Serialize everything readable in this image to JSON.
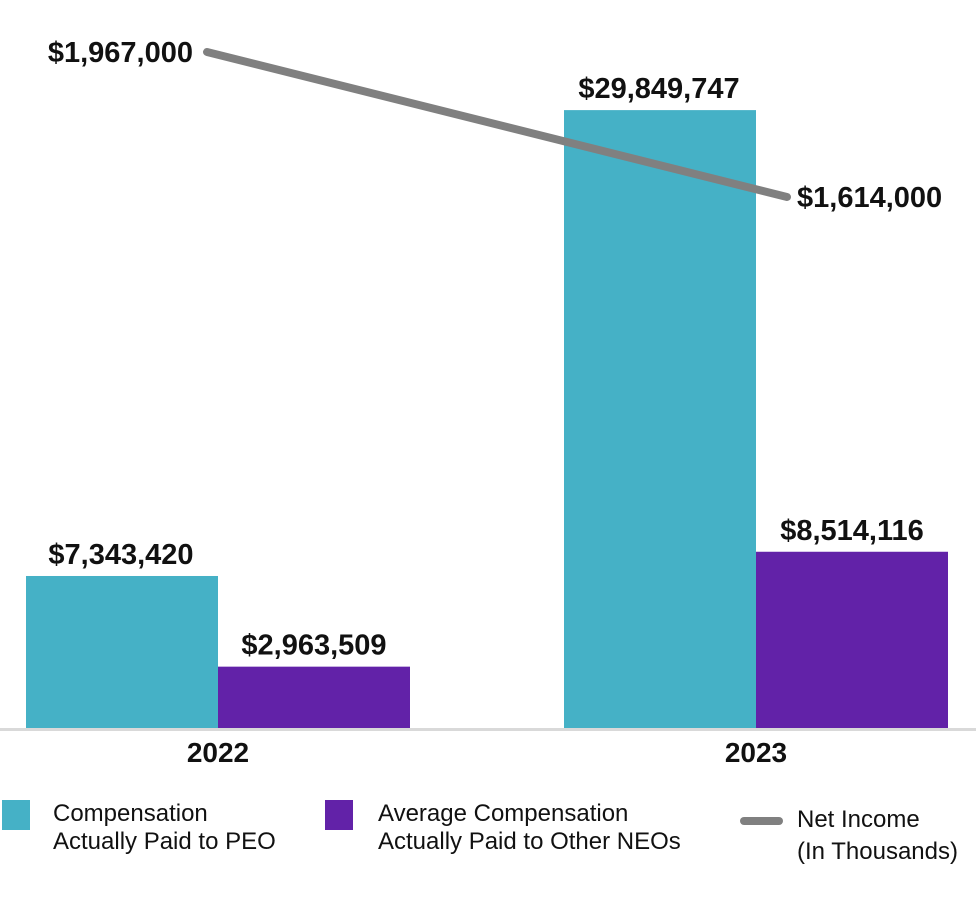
{
  "chart_data": {
    "type": "bar",
    "categories": [
      "2022",
      "2023"
    ],
    "series": [
      {
        "name": "Compensation Actually Paid to PEO",
        "values": [
          7343420,
          29849747
        ],
        "labels": [
          "$7,343,420",
          "$29,849,747"
        ],
        "color": "#45B1C6",
        "kind": "bar"
      },
      {
        "name": "Average Compensation Actually Paid to Other NEOs",
        "values": [
          2963509,
          8514116
        ],
        "labels": [
          "$2,963,509",
          "$8,514,116"
        ],
        "color": "#6222A8",
        "kind": "bar"
      },
      {
        "name": "Net Income (In Thousands)",
        "values": [
          1967000,
          1614000
        ],
        "labels": [
          "$1,967,000",
          "$1,614,000"
        ],
        "color": "#808080",
        "kind": "line"
      }
    ],
    "legend": {
      "placement": "bottom",
      "items": [
        {
          "line1": "Compensation",
          "line2": "Actually Paid to PEO"
        },
        {
          "line1": "Average Compensation",
          "line2": "Actually Paid to Other NEOs"
        },
        {
          "line1": "Net Income",
          "line2": "(In Thousands)"
        }
      ]
    },
    "grid": false,
    "axis_color": "#D9D9D9"
  }
}
